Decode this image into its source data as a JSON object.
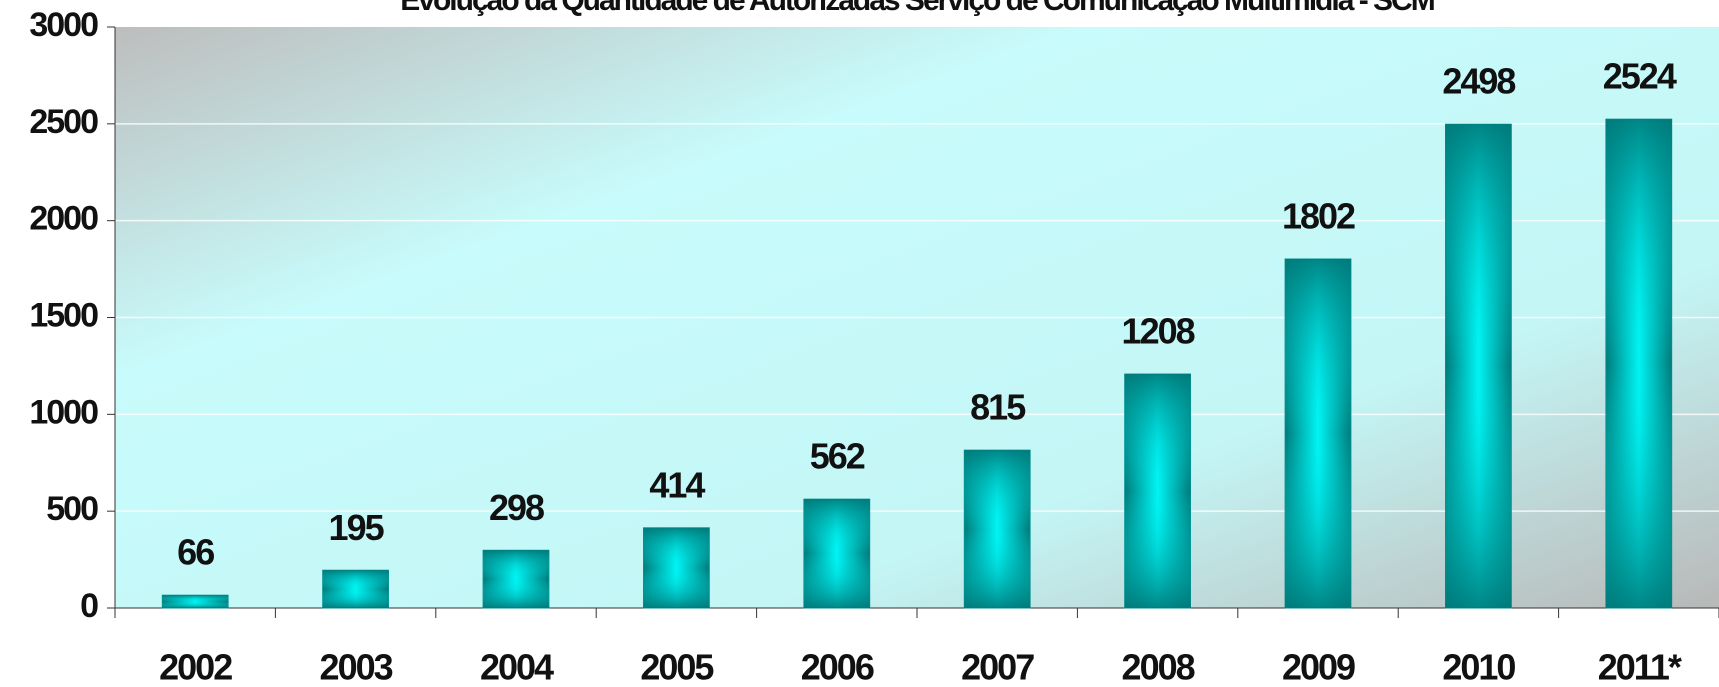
{
  "chart_data": {
    "type": "bar",
    "title": "Evolução da Quantidade de Autorizadas Serviço de Comunicação Multimídia - SCM",
    "categories": [
      "2002",
      "2003",
      "2004",
      "2005",
      "2006",
      "2007",
      "2008",
      "2009",
      "2010",
      "2011*"
    ],
    "values": [
      66,
      195,
      298,
      414,
      562,
      815,
      1208,
      1802,
      2498,
      2524
    ],
    "color": "#008b8b",
    "ylim": [
      0,
      3000
    ],
    "yticks": [
      0,
      500,
      1000,
      1500,
      2000,
      2500,
      3000
    ],
    "grid": true
  }
}
